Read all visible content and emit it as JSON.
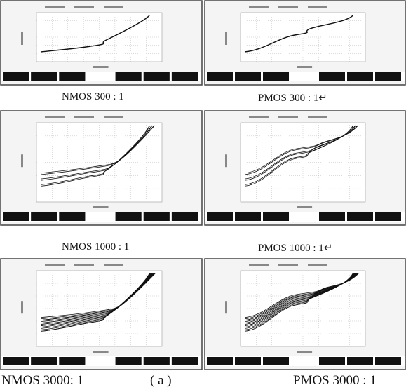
{
  "captions": {
    "row1": {
      "left": "NMOS 300 : 1",
      "right": "PMOS 300 : 1↵"
    },
    "row2": {
      "left": "NMOS 1000 : 1",
      "right": "PMOS 1000 : 1↵"
    },
    "row3": {
      "left": "NMOS 3000: 1",
      "center": "( a )",
      "right": "PMOS 3000 : 1"
    }
  }
}
